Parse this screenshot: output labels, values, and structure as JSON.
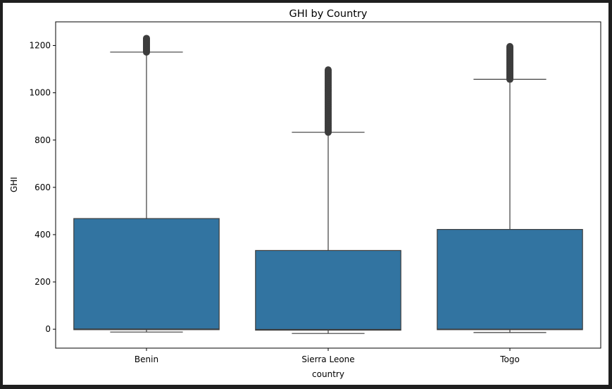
{
  "chart_data": {
    "type": "box",
    "title": "GHI by Country",
    "xlabel": "country",
    "ylabel": "GHI",
    "ylim": [
      -80,
      1300
    ],
    "yticks": [
      0,
      200,
      400,
      600,
      800,
      1000,
      1200
    ],
    "grid": false,
    "categories": [
      "Benin",
      "Sierra Leone",
      "Togo"
    ],
    "box_color": "#3274a1",
    "line_color": "#3d3d3d",
    "boxes": [
      {
        "category": "Benin",
        "whisker_low": -12,
        "q1": -2,
        "median": 1,
        "q3": 468,
        "whisker_high": 1172,
        "outlier_min": 1172,
        "outlier_max": 1233
      },
      {
        "category": "Sierra Leone",
        "whisker_low": -18,
        "q1": -4,
        "median": -1,
        "q3": 333,
        "whisker_high": 833,
        "outlier_min": 833,
        "outlier_max": 1097
      },
      {
        "category": "Togo",
        "whisker_low": -14,
        "q1": -2,
        "median": 0,
        "q3": 422,
        "whisker_high": 1057,
        "outlier_min": 1057,
        "outlier_max": 1199
      }
    ]
  }
}
